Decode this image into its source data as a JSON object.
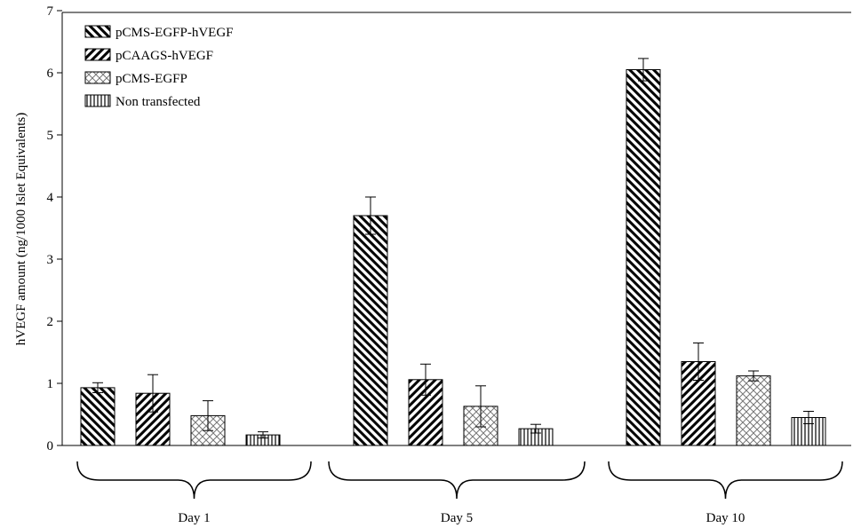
{
  "chart_data": {
    "type": "bar",
    "title": "",
    "xlabel": "",
    "ylabel": "hVEGF amount (ng/1000 Islet Equivalents)",
    "ylim": [
      0,
      7
    ],
    "yticks": [
      "0",
      "1",
      "2",
      "3",
      "4",
      "5",
      "6",
      "7"
    ],
    "categories": [
      "Day 1",
      "Day 5",
      "Day 10"
    ],
    "series": [
      {
        "name": "pCMS-EGFP-hVEGF",
        "pattern": "diag-down",
        "values": [
          0.93,
          3.7,
          6.05
        ],
        "errors": [
          0.08,
          0.3,
          0.18
        ]
      },
      {
        "name": "pCAAGS-hVEGF",
        "pattern": "diag-up",
        "values": [
          0.84,
          1.06,
          1.35
        ],
        "errors": [
          0.3,
          0.25,
          0.3
        ]
      },
      {
        "name": "pCMS-EGFP",
        "pattern": "cross",
        "values": [
          0.48,
          0.63,
          1.12
        ],
        "errors": [
          0.24,
          0.33,
          0.08
        ]
      },
      {
        "name": "Non transfected",
        "pattern": "vertical",
        "values": [
          0.17,
          0.27,
          0.45
        ],
        "errors": [
          0.05,
          0.07,
          0.1
        ]
      }
    ],
    "legend_position": "top-left",
    "grid": false
  }
}
